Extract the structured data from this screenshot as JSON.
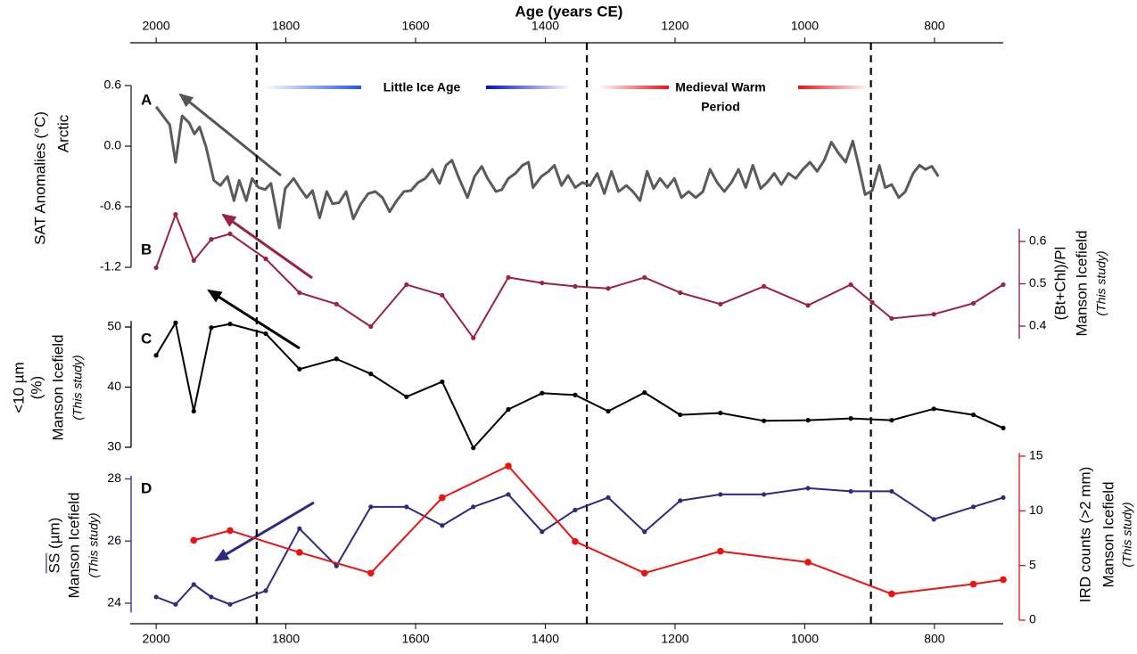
{
  "chart_data": {
    "type": "line",
    "xlabel": "Age (years CE)",
    "xlim": [
      2040,
      694
    ],
    "xticks": [
      2000,
      1800,
      1600,
      1400,
      1200,
      1000,
      800
    ],
    "period_boundaries": [
      1845,
      1336,
      898
    ],
    "annotations": {
      "little_ice_age": "Little Ice Age",
      "medieval_warm_period": [
        "Medieval Warm",
        "Period"
      ]
    },
    "series": [
      {
        "panel": "A",
        "ylabel": "SAT Anomalies (°C)",
        "site": "Arctic",
        "color": "#5a5a5a",
        "axis_color": "#222222",
        "side": "left",
        "markers": false,
        "ylim": [
          -1.2,
          0.6
        ],
        "yticks": [
          0.6,
          {
            "value": 0,
            "label": "0.0"
          },
          -0.6,
          -1.2
        ],
        "x": [
          2000,
          1979,
          1970,
          1960,
          1949,
          1941,
          1933,
          1923,
          1911,
          1901,
          1890,
          1880,
          1872,
          1861,
          1852,
          1842,
          1832,
          1823,
          1810,
          1801,
          1788,
          1779,
          1768,
          1759,
          1748,
          1737,
          1728,
          1718,
          1707,
          1696,
          1685,
          1673,
          1662,
          1651,
          1640,
          1629,
          1618,
          1607,
          1596,
          1585,
          1574,
          1563,
          1553,
          1544,
          1533,
          1520,
          1509,
          1498,
          1489,
          1476,
          1467,
          1457,
          1446,
          1435,
          1426,
          1419,
          1406,
          1395,
          1386,
          1375,
          1365,
          1354,
          1343,
          1331,
          1320,
          1309,
          1298,
          1287,
          1275,
          1265,
          1254,
          1243,
          1233,
          1223,
          1212,
          1201,
          1190,
          1179,
          1168,
          1157,
          1146,
          1135,
          1124,
          1113,
          1102,
          1091,
          1080,
          1068,
          1058,
          1047,
          1036,
          1025,
          1014,
          1003,
          992,
          981,
          970,
          959,
          948,
          937,
          926,
          917,
          907,
          896,
          885,
          876,
          866,
          855,
          845,
          833,
          823,
          814,
          804,
          794
        ],
        "values": [
          0.39,
          0.21,
          -0.16,
          0.3,
          0.23,
          0.12,
          0.19,
          -0.01,
          -0.34,
          -0.39,
          -0.3,
          -0.54,
          -0.34,
          -0.54,
          -0.32,
          -0.41,
          -0.43,
          -0.37,
          -0.81,
          -0.42,
          -0.32,
          -0.41,
          -0.51,
          -0.44,
          -0.71,
          -0.45,
          -0.57,
          -0.56,
          -0.45,
          -0.72,
          -0.58,
          -0.47,
          -0.45,
          -0.51,
          -0.65,
          -0.54,
          -0.45,
          -0.44,
          -0.36,
          -0.32,
          -0.23,
          -0.37,
          -0.19,
          -0.14,
          -0.32,
          -0.51,
          -0.3,
          -0.2,
          -0.32,
          -0.45,
          -0.43,
          -0.32,
          -0.27,
          -0.19,
          -0.16,
          -0.41,
          -0.3,
          -0.25,
          -0.19,
          -0.39,
          -0.29,
          -0.41,
          -0.36,
          -0.39,
          -0.27,
          -0.47,
          -0.25,
          -0.45,
          -0.39,
          -0.45,
          -0.54,
          -0.25,
          -0.42,
          -0.32,
          -0.41,
          -0.32,
          -0.51,
          -0.45,
          -0.51,
          -0.45,
          -0.23,
          -0.36,
          -0.45,
          -0.36,
          -0.23,
          -0.41,
          -0.19,
          -0.42,
          -0.36,
          -0.27,
          -0.38,
          -0.27,
          -0.32,
          -0.23,
          -0.16,
          -0.25,
          -0.14,
          0.04,
          -0.07,
          -0.16,
          0.05,
          -0.19,
          -0.48,
          -0.44,
          -0.19,
          -0.41,
          -0.38,
          -0.51,
          -0.45,
          -0.27,
          -0.19,
          -0.23,
          -0.2,
          -0.3
        ]
      },
      {
        "panel": "B",
        "ylabel": "(Bt+Chl)/Pl",
        "site": "Manson Icefield",
        "note": "(This study)",
        "color": "#9b2242",
        "axis_color": "#8b1a3a",
        "side": "right",
        "markers": true,
        "ylim": [
          0.37,
          0.63
        ],
        "yticks": [
          0.6,
          0.5,
          0.4
        ],
        "x": [
          2000,
          1970,
          1942,
          1915,
          1886,
          1831,
          1779,
          1722,
          1669,
          1614,
          1559,
          1511,
          1457,
          1405,
          1354,
          1303,
          1247,
          1192,
          1130,
          1063,
          995,
          929,
          896,
          866,
          801,
          740,
          694
        ],
        "values": [
          0.538,
          0.664,
          0.555,
          0.605,
          0.618,
          0.559,
          0.479,
          0.452,
          0.399,
          0.498,
          0.473,
          0.372,
          0.515,
          0.502,
          0.494,
          0.489,
          0.515,
          0.479,
          0.452,
          0.494,
          0.449,
          0.498,
          0.456,
          0.418,
          0.428,
          0.454,
          0.498
        ]
      },
      {
        "panel": "C",
        "ylabel": [
          "<10 µm",
          "(%)"
        ],
        "site": "Manson Icefield",
        "note": "(This study)",
        "color": "#000000",
        "axis_color": "#000000",
        "side": "left",
        "markers": true,
        "ylim": [
          30,
          51
        ],
        "yticks": [
          50,
          40,
          30
        ],
        "x": [
          2000,
          1970,
          1942,
          1915,
          1886,
          1831,
          1779,
          1722,
          1669,
          1614,
          1559,
          1511,
          1457,
          1405,
          1354,
          1303,
          1247,
          1192,
          1130,
          1063,
          995,
          929,
          866,
          801,
          740,
          694
        ],
        "values": [
          45.3,
          50.7,
          36.0,
          49.9,
          50.5,
          48.9,
          43.0,
          44.7,
          42.2,
          38.4,
          40.9,
          29.9,
          36.3,
          39.0,
          38.7,
          36.0,
          39.1,
          35.4,
          35.7,
          34.4,
          34.5,
          34.8,
          34.5,
          36.4,
          35.4,
          33.2
        ]
      },
      {
        "panel": "D",
        "ylabel": "SS (µm)",
        "site": "Manson Icefield",
        "note": "(This study)",
        "color": "#2b2b80",
        "axis_color": "#2b2b80",
        "side": "left",
        "markers": true,
        "ylim": [
          23.7,
          28.1
        ],
        "yticks": [
          28,
          26,
          24
        ],
        "x": [
          2000,
          1970,
          1942,
          1915,
          1886,
          1831,
          1779,
          1722,
          1669,
          1614,
          1559,
          1511,
          1457,
          1405,
          1354,
          1303,
          1247,
          1192,
          1130,
          1063,
          995,
          929,
          866,
          801,
          740,
          694
        ],
        "values": [
          24.2,
          23.96,
          24.6,
          24.2,
          23.96,
          24.4,
          26.4,
          25.2,
          27.1,
          27.1,
          26.5,
          27.1,
          27.5,
          26.3,
          27.0,
          27.4,
          26.3,
          27.3,
          27.5,
          27.5,
          27.7,
          27.6,
          27.6,
          26.7,
          27.1,
          27.4
        ]
      },
      {
        "ylabel": "IRD counts (>2 mm)",
        "site": "Manson Icefield",
        "note": "(This study)",
        "color": "#ee1111",
        "axis_color": "#ee1111",
        "side": "right",
        "markers": true,
        "ylim": [
          0,
          15.3
        ],
        "yticks": [
          15,
          10,
          5,
          0
        ],
        "x": [
          1942,
          1886,
          1779,
          1669,
          1559,
          1457,
          1354,
          1247,
          1130,
          995,
          866,
          740,
          694
        ],
        "values": [
          7.3,
          8.2,
          6.2,
          4.3,
          11.2,
          14.1,
          7.2,
          4.3,
          6.3,
          5.3,
          2.4,
          3.3,
          3.7
        ]
      }
    ]
  }
}
